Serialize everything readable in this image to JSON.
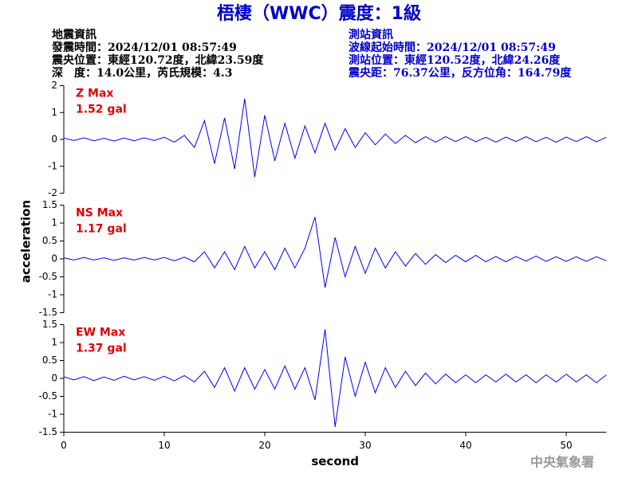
{
  "header": {
    "title": "梧棲（WWC）震度：1級",
    "left": [
      "地震資訊",
      "發震時間：2024/12/01 08:57:49",
      "震央位置：東經120.72度，北緯23.59度",
      "深　度：14.0公里，芮氏規模：4.3"
    ],
    "right": [
      "測站資訊",
      "波線起始時間：2024/12/01 08:57:49",
      "測站位置：東經120.52度，北緯24.26度",
      "震央距：76.37公里，反方位角：164.79度"
    ]
  },
  "ylabel": "acceleration",
  "footer": "中央氣象署",
  "chart_data": [
    {
      "type": "line",
      "annotations": [
        "Z Max",
        "1.52 gal"
      ],
      "color": "#0000ff",
      "xlim": [
        0,
        54
      ],
      "ylim": [
        -2,
        2
      ],
      "yticks": [
        -2,
        -1,
        0,
        1,
        2
      ],
      "x": [
        0,
        1,
        2,
        3,
        4,
        5,
        6,
        7,
        8,
        9,
        10,
        11,
        12,
        13,
        14,
        15,
        16,
        17,
        18,
        19,
        20,
        21,
        22,
        23,
        24,
        25,
        26,
        27,
        28,
        29,
        30,
        31,
        32,
        33,
        34,
        35,
        36,
        37,
        38,
        39,
        40,
        41,
        42,
        43,
        44,
        45,
        46,
        47,
        48,
        49,
        50,
        51,
        52,
        53,
        54
      ],
      "values": [
        0.05,
        -0.04,
        0.06,
        -0.05,
        0.04,
        -0.06,
        0.05,
        -0.05,
        0.06,
        -0.04,
        0.08,
        -0.1,
        0.15,
        -0.3,
        0.7,
        -0.9,
        0.8,
        -1.1,
        1.52,
        -1.4,
        0.9,
        -0.8,
        0.6,
        -0.7,
        0.5,
        -0.5,
        0.6,
        -0.4,
        0.4,
        -0.3,
        0.25,
        -0.2,
        0.2,
        -0.15,
        0.15,
        -0.12,
        0.1,
        -0.1,
        0.1,
        -0.08,
        0.1,
        -0.09,
        0.08,
        -0.1,
        0.09,
        -0.08,
        0.1,
        -0.09,
        0.08,
        -0.1,
        0.09,
        -0.08,
        0.1,
        -0.09,
        0.08
      ]
    },
    {
      "type": "line",
      "annotations": [
        "NS Max",
        "1.17 gal"
      ],
      "color": "#0000ff",
      "xlim": [
        0,
        54
      ],
      "ylim": [
        -1.5,
        1.5
      ],
      "yticks": [
        -1.5,
        -1,
        -0.5,
        0,
        0.5,
        1,
        1.5
      ],
      "x": [
        0,
        1,
        2,
        3,
        4,
        5,
        6,
        7,
        8,
        9,
        10,
        11,
        12,
        13,
        14,
        15,
        16,
        17,
        18,
        19,
        20,
        21,
        22,
        23,
        24,
        25,
        26,
        27,
        28,
        29,
        30,
        31,
        32,
        33,
        34,
        35,
        36,
        37,
        38,
        39,
        40,
        41,
        42,
        43,
        44,
        45,
        46,
        47,
        48,
        49,
        50,
        51,
        52,
        53,
        54
      ],
      "values": [
        0.03,
        -0.03,
        0.04,
        -0.03,
        0.03,
        -0.04,
        0.03,
        -0.03,
        0.04,
        -0.03,
        0.04,
        -0.05,
        0.05,
        -0.08,
        0.2,
        -0.25,
        0.2,
        -0.3,
        0.35,
        -0.25,
        0.2,
        -0.3,
        0.3,
        -0.25,
        0.3,
        1.17,
        -0.8,
        0.6,
        -0.5,
        0.35,
        -0.4,
        0.3,
        -0.25,
        0.2,
        -0.2,
        0.15,
        -0.15,
        0.12,
        -0.1,
        0.1,
        -0.08,
        0.1,
        -0.08,
        0.07,
        -0.08,
        0.07,
        -0.06,
        0.08,
        -0.07,
        0.06,
        -0.07,
        0.06,
        -0.07,
        0.06,
        -0.05
      ]
    },
    {
      "type": "line",
      "annotations": [
        "EW Max",
        "1.37 gal"
      ],
      "color": "#0000ff",
      "xlim": [
        0,
        54
      ],
      "ylim": [
        -1.5,
        1.5
      ],
      "yticks": [
        -1.5,
        -1,
        -0.5,
        0,
        0.5,
        1,
        1.5
      ],
      "xticks": [
        0,
        10,
        20,
        30,
        40,
        50
      ],
      "xlabel": "second",
      "x": [
        0,
        1,
        2,
        3,
        4,
        5,
        6,
        7,
        8,
        9,
        10,
        11,
        12,
        13,
        14,
        15,
        16,
        17,
        18,
        19,
        20,
        21,
        22,
        23,
        24,
        25,
        26,
        27,
        28,
        29,
        30,
        31,
        32,
        33,
        34,
        35,
        36,
        37,
        38,
        39,
        40,
        41,
        42,
        43,
        44,
        45,
        46,
        47,
        48,
        49,
        50,
        51,
        52,
        53,
        54
      ],
      "values": [
        0.05,
        -0.04,
        0.05,
        -0.06,
        0.04,
        -0.05,
        0.06,
        -0.04,
        0.05,
        -0.05,
        0.06,
        -0.07,
        0.08,
        -0.1,
        0.2,
        -0.25,
        0.3,
        -0.35,
        0.3,
        -0.3,
        0.25,
        -0.3,
        0.35,
        -0.3,
        0.3,
        -0.6,
        1.37,
        -1.35,
        0.6,
        -0.5,
        0.45,
        -0.4,
        0.3,
        -0.25,
        0.2,
        -0.2,
        0.15,
        -0.15,
        0.12,
        -0.12,
        0.1,
        -0.12,
        0.1,
        -0.1,
        0.12,
        -0.1,
        0.1,
        -0.12,
        0.1,
        -0.1,
        0.12,
        -0.1,
        0.1,
        -0.12,
        0.1
      ]
    }
  ]
}
